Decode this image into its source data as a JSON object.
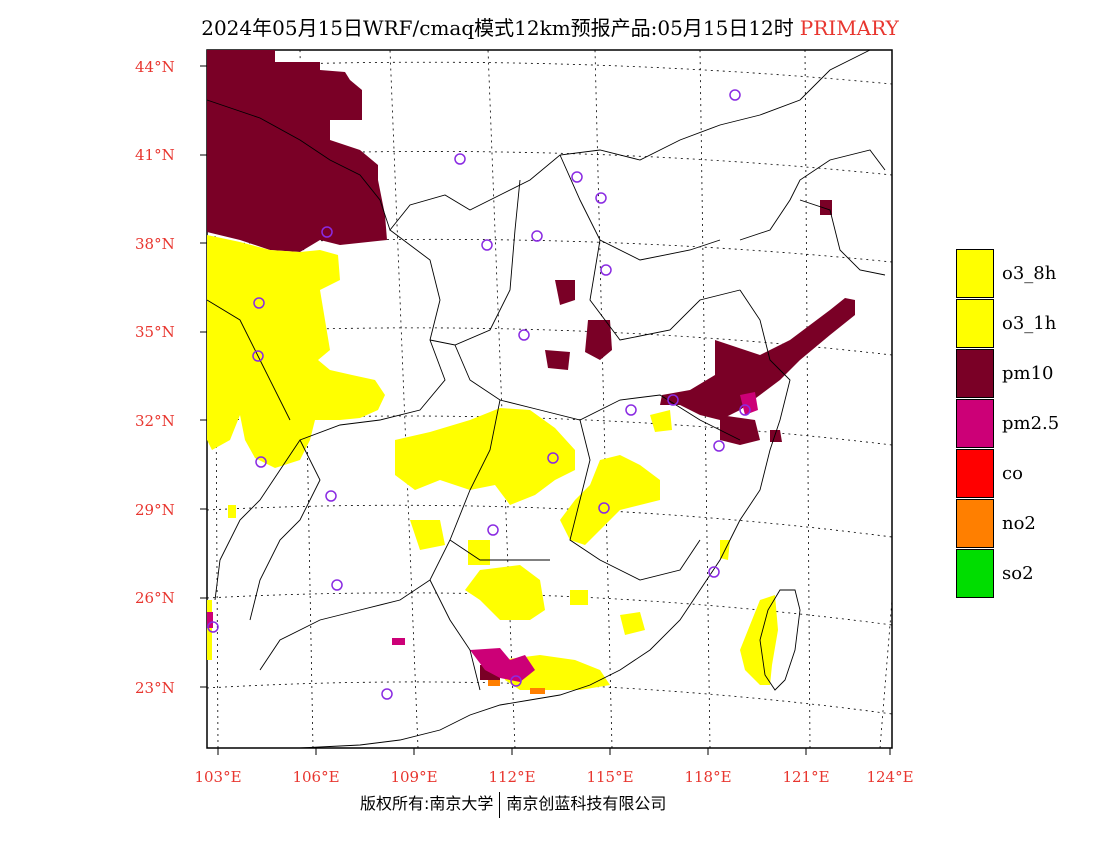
{
  "title": {
    "main": "2024年05月15日WRF/cmaq模式12km预报产品:05月15日12时",
    "tag": "PRIMARY"
  },
  "axes": {
    "lat_labels": [
      "44°N",
      "41°N",
      "38°N",
      "35°N",
      "32°N",
      "29°N",
      "26°N",
      "23°N"
    ],
    "lon_labels": [
      "103°E",
      "106°E",
      "109°E",
      "112°E",
      "115°E",
      "118°E",
      "121°E",
      "124°E"
    ],
    "tick_color": "#e8362f"
  },
  "legend": {
    "items": [
      {
        "label": "o3_8h",
        "color": "#ffff00"
      },
      {
        "label": "o3_1h",
        "color": "#ffff00"
      },
      {
        "label": "pm10",
        "color": "#7a0026"
      },
      {
        "label": "pm2.5",
        "color": "#cc0077"
      },
      {
        "label": "co",
        "color": "#ff0000"
      },
      {
        "label": "no2",
        "color": "#ff7f00"
      },
      {
        "label": "so2",
        "color": "#00dd00"
      }
    ]
  },
  "footer": {
    "left": "版权所有:南京大学",
    "right": "南京创蓝科技有限公司"
  }
}
